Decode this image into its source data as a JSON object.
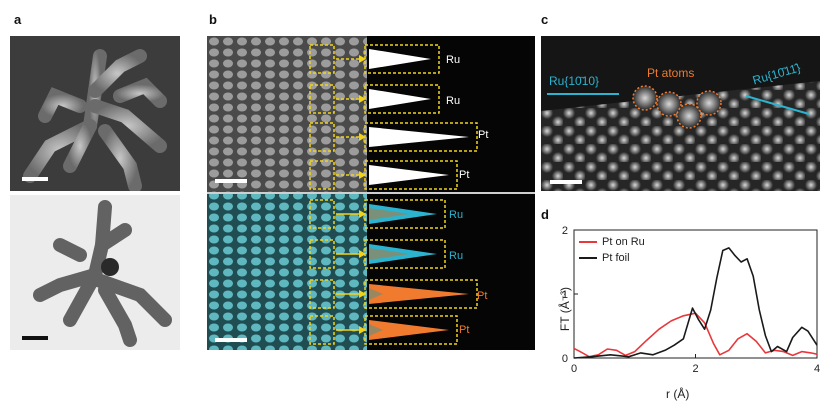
{
  "panel_labels": {
    "a": "a",
    "b": "b",
    "c": "c",
    "d": "d"
  },
  "panel_b": {
    "top_rows": [
      {
        "label": "Ru"
      },
      {
        "label": "Ru"
      },
      {
        "label": "Pt"
      },
      {
        "label": "Pt"
      }
    ],
    "bottom_rows": [
      {
        "label": "Ru"
      },
      {
        "label": "Ru"
      },
      {
        "label": "Pt"
      },
      {
        "label": "Pt"
      }
    ],
    "colors": {
      "white_row": "#ffffff",
      "ru": "#2bb3cf",
      "pt": "#f07a2e",
      "box": "#f2d31b"
    }
  },
  "panel_c": {
    "pt_atoms_label": "Pt atoms",
    "ru_left_label": "Ru{10̄10}",
    "ru_right_label": "Ru{10̄11̄}",
    "colors": {
      "pt": "#f07a2e",
      "ru": "#2bb3cf"
    }
  },
  "chart_data": {
    "type": "line",
    "xlabel": "r (Å)",
    "ylabel": "FT (Å⁻³)",
    "xlim": [
      0,
      4
    ],
    "ylim": [
      0,
      2
    ],
    "xticks": [
      "0",
      "2",
      "4"
    ],
    "yticks": [
      "0",
      "1",
      "2"
    ],
    "legend_position": "top-left",
    "series": [
      {
        "name": "Pt on Ru",
        "color": "#e8383b",
        "x": [
          0,
          0.1,
          0.25,
          0.4,
          0.55,
          0.7,
          0.85,
          1.0,
          1.2,
          1.4,
          1.6,
          1.8,
          2.0,
          2.15,
          2.3,
          2.4,
          2.55,
          2.7,
          2.85,
          3.0,
          3.15,
          3.3,
          3.45,
          3.6,
          3.75,
          3.9,
          4.0
        ],
        "y": [
          0.15,
          0.1,
          0.02,
          0.05,
          0.14,
          0.12,
          0.04,
          0.1,
          0.28,
          0.45,
          0.58,
          0.66,
          0.7,
          0.55,
          0.22,
          0.05,
          0.12,
          0.3,
          0.38,
          0.26,
          0.08,
          0.12,
          0.1,
          0.04,
          0.1,
          0.08,
          0.06
        ]
      },
      {
        "name": "Pt foil",
        "color": "#1a1a1a",
        "x": [
          0,
          0.3,
          0.6,
          0.9,
          1.1,
          1.3,
          1.5,
          1.65,
          1.8,
          1.95,
          2.05,
          2.15,
          2.25,
          2.35,
          2.45,
          2.55,
          2.65,
          2.75,
          2.85,
          2.95,
          3.05,
          3.15,
          3.25,
          3.35,
          3.5,
          3.6,
          3.75,
          3.85,
          4.0
        ],
        "y": [
          0.0,
          0.02,
          0.05,
          0.02,
          0.08,
          0.05,
          0.12,
          0.2,
          0.3,
          0.78,
          0.6,
          0.45,
          0.75,
          1.25,
          1.68,
          1.72,
          1.6,
          1.5,
          1.55,
          1.28,
          0.75,
          0.35,
          0.1,
          0.18,
          0.1,
          0.32,
          0.48,
          0.42,
          0.2
        ]
      }
    ]
  }
}
